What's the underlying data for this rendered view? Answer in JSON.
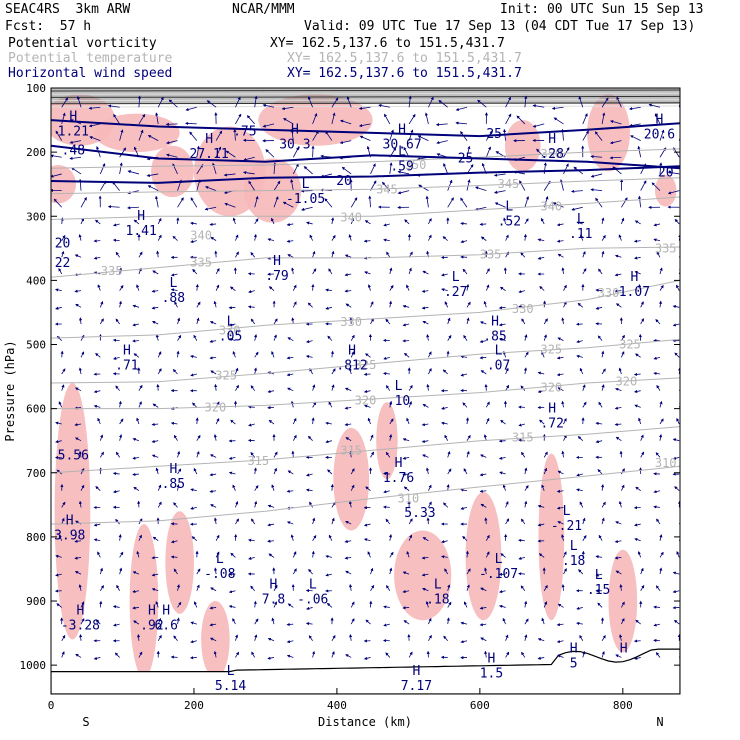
{
  "header": {
    "project": "SEAC4RS  3km ARW",
    "org": "NCAR/MMM",
    "init": "Init: 00 UTC Sun 15 Sep 13",
    "fcst": "Fcst:  57 h",
    "valid": "Valid: 09 UTC Tue 17 Sep 13 (04 CDT Tue 17 Sep 13)",
    "fields": [
      {
        "label": "Potential vorticity",
        "xy": "XY= 162.5,137.6 to 151.5,431.7",
        "color": "#000000"
      },
      {
        "label": "Potential temperature",
        "xy": "XY= 162.5,137.6 to 151.5,431.7",
        "color": "#b4b4b4"
      },
      {
        "label": "Horizontal wind speed",
        "xy": "XY= 162.5,137.6 to 151.5,431.7",
        "color": "#00007a"
      }
    ]
  },
  "chart_data": {
    "type": "cross-section",
    "xlabel": "Distance (km)",
    "ylabel": "Pressure (hPa)",
    "xlim": [
      0,
      880
    ],
    "ylim": [
      1045,
      100
    ],
    "x_ticks": [
      0,
      200,
      400,
      600,
      800
    ],
    "y_ticks": [
      100,
      200,
      300,
      400,
      500,
      600,
      700,
      800,
      900,
      1000
    ],
    "end_labels": {
      "left": "S",
      "right": "N"
    },
    "theta_contours": {
      "color": "#b4b4b4",
      "series": [
        {
          "label": "310",
          "points": [
            [
              0,
              780
            ],
            [
              150,
              775
            ],
            [
              300,
              760
            ],
            [
              450,
              740
            ],
            [
              600,
              722
            ],
            [
              750,
              705
            ],
            [
              880,
              690
            ]
          ],
          "label_at": [
            [
              500,
              740
            ],
            [
              860,
              685
            ]
          ]
        },
        {
          "label": "315",
          "points": [
            [
              0,
              700
            ],
            [
              150,
              690
            ],
            [
              300,
              680
            ],
            [
              450,
              665
            ],
            [
              600,
              650
            ],
            [
              750,
              640
            ],
            [
              880,
              628
            ]
          ],
          "label_at": [
            [
              290,
              682
            ],
            [
              420,
              665
            ],
            [
              660,
              645
            ]
          ]
        },
        {
          "label": "320",
          "points": [
            [
              0,
              600
            ],
            [
              150,
              600
            ],
            [
              300,
              595
            ],
            [
              450,
              585
            ],
            [
              600,
              575
            ],
            [
              750,
              560
            ],
            [
              880,
              552
            ]
          ],
          "label_at": [
            [
              230,
              598
            ],
            [
              440,
              587
            ],
            [
              700,
              567
            ],
            [
              805,
              558
            ]
          ]
        },
        {
          "label": "325",
          "points": [
            [
              0,
              560
            ],
            [
              150,
              558
            ],
            [
              300,
              545
            ],
            [
              450,
              530
            ],
            [
              600,
              515
            ],
            [
              750,
              505
            ],
            [
              880,
              492
            ]
          ],
          "label_at": [
            [
              245,
              548
            ],
            [
              440,
              532
            ],
            [
              700,
              508
            ],
            [
              810,
              500
            ]
          ]
        },
        {
          "label": "330",
          "points": [
            [
              0,
              490
            ],
            [
              150,
              485
            ],
            [
              300,
              470
            ],
            [
              450,
              460
            ],
            [
              600,
              450
            ],
            [
              750,
              430
            ],
            [
              880,
              400
            ]
          ],
          "label_at": [
            [
              250,
              478
            ],
            [
              420,
              465
            ],
            [
              660,
              445
            ],
            [
              780,
              420
            ]
          ]
        },
        {
          "label": "335",
          "points": [
            [
              0,
              395
            ],
            [
              150,
              380
            ],
            [
              300,
              365
            ],
            [
              450,
              365
            ],
            [
              600,
              360
            ],
            [
              750,
              350
            ],
            [
              880,
              348
            ]
          ],
          "label_at": [
            [
              85,
              385
            ],
            [
              210,
              372
            ],
            [
              615,
              360
            ],
            [
              860,
              350
            ]
          ]
        },
        {
          "label": "340",
          "points": [
            [
              0,
              305
            ],
            [
              150,
              300
            ],
            [
              300,
              300
            ],
            [
              450,
              300
            ],
            [
              600,
              290
            ],
            [
              750,
              280
            ],
            [
              880,
              270
            ]
          ],
          "label_at": [
            [
              210,
              330
            ],
            [
              420,
              302
            ],
            [
              700,
              285
            ]
          ]
        },
        {
          "label": "345",
          "points": [
            [
              0,
              265
            ],
            [
              150,
              262
            ],
            [
              300,
              260
            ],
            [
              450,
              258
            ],
            [
              600,
              252
            ],
            [
              750,
              245
            ],
            [
              880,
              240
            ]
          ],
          "label_at": [
            [
              470,
              258
            ],
            [
              640,
              250
            ]
          ]
        },
        {
          "label": "350",
          "points": [
            [
              0,
              225
            ],
            [
              150,
              222
            ],
            [
              300,
              220
            ],
            [
              450,
              215
            ],
            [
              600,
              208
            ],
            [
              750,
              200
            ],
            [
              880,
              195
            ]
          ],
          "label_at": [
            [
              510,
              220
            ],
            [
              700,
              203
            ]
          ]
        }
      ]
    },
    "wind_contours": {
      "color": "#00007a",
      "series": [
        {
          "label": "25",
          "points": [
            [
              0,
              150
            ],
            [
              150,
              160
            ],
            [
              300,
              165
            ],
            [
              450,
              170
            ],
            [
              600,
              175
            ],
            [
              750,
              165
            ],
            [
              880,
              155
            ]
          ],
          "label_at": [
            [
              620,
              172
            ]
          ]
        },
        {
          "label": "25",
          "points": [
            [
              0,
              190
            ],
            [
              150,
              210
            ],
            [
              300,
              215
            ],
            [
              450,
              205
            ],
            [
              600,
              210
            ],
            [
              750,
              215
            ],
            [
              880,
              225
            ]
          ],
          "label_at": [
            [
              580,
              210
            ]
          ]
        },
        {
          "label": "20",
          "points": [
            [
              0,
              245
            ],
            [
              150,
              248
            ],
            [
              300,
              240
            ],
            [
              450,
              238
            ],
            [
              600,
              232
            ],
            [
              750,
              228
            ],
            [
              880,
              222
            ]
          ],
          "label_at": [
            [
              410,
              245
            ],
            [
              860,
              232
            ]
          ]
        }
      ]
    },
    "pv_extrema": [
      {
        "kind": "H",
        "value": "1.21",
        "x": 20,
        "y": 160
      },
      {
        "kind": "",
        "value": ".48",
        "x": 20,
        "y": 190
      },
      {
        "kind": "H",
        "value": "27.11",
        "x": 210,
        "y": 195
      },
      {
        "kind": "",
        "value": ".75",
        "x": 260,
        "y": 160
      },
      {
        "kind": "H",
        "value": "30.3",
        "x": 330,
        "y": 180
      },
      {
        "kind": "H",
        "value": "30.67",
        "x": 480,
        "y": 180
      },
      {
        "kind": "L",
        "value": ".59",
        "x": 480,
        "y": 215
      },
      {
        "kind": "H",
        "value": ".28",
        "x": 690,
        "y": 195
      },
      {
        "kind": "H",
        "value": "20.6",
        "x": 840,
        "y": 165
      },
      {
        "kind": "L",
        "value": "-1.05",
        "x": 345,
        "y": 265
      },
      {
        "kind": "H",
        "value": "1.41",
        "x": 115,
        "y": 315
      },
      {
        "kind": "",
        "value": "20",
        "x": 5,
        "y": 335
      },
      {
        "kind": "",
        "value": "22",
        "x": 5,
        "y": 365
      },
      {
        "kind": "L",
        "value": ".52",
        "x": 630,
        "y": 300
      },
      {
        "kind": "L",
        "value": ".11",
        "x": 730,
        "y": 320
      },
      {
        "kind": "H",
        "value": ".79",
        "x": 305,
        "y": 385
      },
      {
        "kind": "L",
        "value": ".88",
        "x": 160,
        "y": 420
      },
      {
        "kind": "L",
        "value": ".27",
        "x": 555,
        "y": 410
      },
      {
        "kind": "H",
        "value": "1.07",
        "x": 805,
        "y": 410
      },
      {
        "kind": "L",
        "value": ".05",
        "x": 240,
        "y": 480
      },
      {
        "kind": "H",
        "value": ".85",
        "x": 610,
        "y": 480
      },
      {
        "kind": "H",
        "value": ".71",
        "x": 95,
        "y": 525
      },
      {
        "kind": "H",
        "value": ".812",
        "x": 410,
        "y": 525
      },
      {
        "kind": "L",
        "value": ".07",
        "x": 615,
        "y": 525
      },
      {
        "kind": "L",
        "value": ".10",
        "x": 475,
        "y": 580
      },
      {
        "kind": "H",
        "value": ".72",
        "x": 690,
        "y": 615
      },
      {
        "kind": "",
        "value": "5.56",
        "x": 20,
        "y": 665
      },
      {
        "kind": "H",
        "value": ".85",
        "x": 160,
        "y": 710
      },
      {
        "kind": "H",
        "value": "1.76",
        "x": 475,
        "y": 700
      },
      {
        "kind": "",
        "value": "5.33",
        "x": 505,
        "y": 755
      },
      {
        "kind": "H",
        "value": "3.98",
        "x": 15,
        "y": 790
      },
      {
        "kind": "L",
        "value": "-.21",
        "x": 710,
        "y": 775
      },
      {
        "kind": "L",
        "value": ".18",
        "x": 720,
        "y": 830
      },
      {
        "kind": "L",
        "value": "-.08",
        "x": 225,
        "y": 850
      },
      {
        "kind": "L",
        "value": "-.107",
        "x": 615,
        "y": 850
      },
      {
        "kind": "H",
        "value": "7.8",
        "x": 300,
        "y": 890
      },
      {
        "kind": "L",
        "value": "-.06",
        "x": 355,
        "y": 890
      },
      {
        "kind": "L",
        "value": ".18",
        "x": 530,
        "y": 890
      },
      {
        "kind": "L",
        "value": ".15",
        "x": 755,
        "y": 875
      },
      {
        "kind": "H",
        "value": "-3.28",
        "x": 30,
        "y": 930
      },
      {
        "kind": "H",
        "value": ".92",
        "x": 130,
        "y": 930
      },
      {
        "kind": "H",
        "value": "6.6",
        "x": 150,
        "y": 930
      },
      {
        "kind": "L",
        "value": "5.14",
        "x": 240,
        "y": 1025
      },
      {
        "kind": "H",
        "value": "7.17",
        "x": 500,
        "y": 1025
      },
      {
        "kind": "H",
        "value": "1.5",
        "x": 605,
        "y": 1005
      },
      {
        "kind": "H",
        "value": "5",
        "x": 720,
        "y": 990
      },
      {
        "kind": "H",
        "value": "",
        "x": 790,
        "y": 990
      }
    ]
  }
}
